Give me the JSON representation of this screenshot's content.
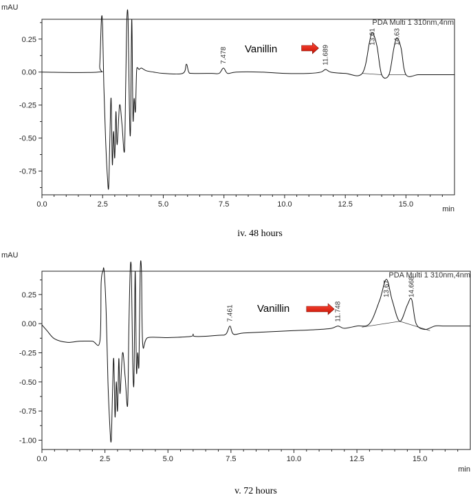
{
  "chart_data": [
    {
      "type": "line",
      "caption": "iv. 48 hours",
      "ylabel": "mAU",
      "xlabel": "min",
      "detector_label": "PDA Multi 1 310nm,4nm",
      "annotation": "Vanillin",
      "xlim": [
        0,
        17
      ],
      "ylim": [
        -0.93,
        0.4
      ],
      "xticks": [
        "0.0",
        "2.5",
        "5.0",
        "7.5",
        "10.0",
        "12.5",
        "15.0"
      ],
      "xtick_values": [
        0,
        2.5,
        5,
        7.5,
        10,
        12.5,
        15
      ],
      "yticks": [
        "0.25",
        "0.00",
        "-0.25",
        "-0.50",
        "-0.75"
      ],
      "ytick_values": [
        0.25,
        0,
        -0.25,
        -0.5,
        -0.75
      ],
      "peak_labels": [
        "7.478",
        "11.689",
        "13.61",
        "14.63"
      ],
      "peak_label_x": [
        7.478,
        11.689,
        13.61,
        14.63
      ],
      "arrow_x": [
        10.7,
        11.4
      ],
      "series": [
        {
          "x": [
            0,
            2.3,
            2.38,
            2.45,
            2.5,
            2.55,
            2.62,
            2.7,
            2.75,
            2.8,
            2.85,
            2.9,
            2.95,
            3.0,
            3.05,
            3.1,
            3.2,
            3.3,
            3.4,
            3.45,
            3.5,
            3.55,
            3.6,
            3.65,
            3.7,
            3.75,
            3.8,
            3.85,
            3.9,
            3.95,
            4.0,
            4.1,
            4.3,
            4.6,
            5.0,
            5.8,
            5.95,
            6.05,
            6.2,
            7.0,
            7.3,
            7.48,
            7.65,
            8.0,
            9.0,
            10.0,
            11.0,
            11.5,
            11.69,
            11.9,
            12.5,
            13.2,
            13.5,
            13.61,
            13.8,
            14.0,
            14.3,
            14.5,
            14.63,
            14.8,
            15.0,
            15.5,
            16.0,
            17.0
          ],
          "y": [
            0.0,
            0.0,
            0.05,
            0.55,
            0.35,
            -0.1,
            -0.5,
            -0.8,
            -0.87,
            -0.5,
            -0.2,
            -0.7,
            -0.45,
            -0.65,
            -0.3,
            -0.55,
            -0.25,
            -0.4,
            -0.6,
            -0.1,
            0.55,
            0.55,
            -0.25,
            -0.45,
            0.55,
            -0.35,
            -0.2,
            -0.3,
            0.0,
            0.03,
            0.02,
            0.03,
            0.01,
            0.0,
            -0.01,
            -0.01,
            0.06,
            0.0,
            -0.01,
            -0.01,
            -0.01,
            0.03,
            -0.01,
            0.0,
            0.0,
            -0.01,
            -0.01,
            0.0,
            0.02,
            0.0,
            -0.01,
            -0.01,
            0.23,
            0.3,
            0.2,
            -0.02,
            -0.02,
            0.18,
            0.26,
            0.18,
            -0.02,
            -0.02,
            -0.02,
            -0.02
          ]
        }
      ]
    },
    {
      "type": "line",
      "caption": "v. 72 hours",
      "ylabel": "mAU",
      "xlabel": "min",
      "detector_label": "PDA Multi 1 310nm,4nm",
      "annotation": "Vanillin",
      "xlim": [
        0,
        17
      ],
      "ylim": [
        -1.08,
        0.45
      ],
      "xticks": [
        "0.0",
        "2.5",
        "5.0",
        "7.5",
        "10.0",
        "12.5",
        "15.0"
      ],
      "xtick_values": [
        0,
        2.5,
        5,
        7.5,
        10,
        12.5,
        15
      ],
      "yticks": [
        "0.25",
        "0.00",
        "-0.25",
        "-0.50",
        "-0.75",
        "-1.00"
      ],
      "ytick_values": [
        0.25,
        0,
        -0.25,
        -0.5,
        -0.75,
        -1.0
      ],
      "peak_labels": [
        "7.461",
        "11.748",
        "13.67",
        "14.668"
      ],
      "peak_label_x": [
        7.461,
        11.748,
        13.67,
        14.668
      ],
      "arrow_x": [
        10.5,
        11.6
      ],
      "series": [
        {
          "x": [
            0,
            0.2,
            0.5,
            1.0,
            1.5,
            2.0,
            2.3,
            2.35,
            2.42,
            2.47,
            2.55,
            2.62,
            2.7,
            2.75,
            2.8,
            2.85,
            2.9,
            2.95,
            3.0,
            3.05,
            3.1,
            3.2,
            3.3,
            3.4,
            3.45,
            3.5,
            3.55,
            3.6,
            3.65,
            3.7,
            3.75,
            3.8,
            3.85,
            3.9,
            3.95,
            4.0,
            4.2,
            5.0,
            5.9,
            6.0,
            6.1,
            7.0,
            7.3,
            7.46,
            7.6,
            8.0,
            9.0,
            10.0,
            11.0,
            11.5,
            11.75,
            12.0,
            12.5,
            13.0,
            13.4,
            13.67,
            13.9,
            14.2,
            14.5,
            14.67,
            14.85,
            15.2,
            15.6,
            16.0,
            17.0
          ],
          "y": [
            -0.01,
            -0.06,
            -0.13,
            -0.16,
            -0.15,
            -0.15,
            -0.15,
            0.35,
            0.55,
            0.55,
            0.1,
            -0.5,
            -0.9,
            -1.0,
            -0.6,
            -0.3,
            -0.8,
            -0.5,
            -0.75,
            -0.3,
            -0.6,
            -0.25,
            -0.45,
            -0.7,
            -0.05,
            0.55,
            0.55,
            -0.3,
            -0.5,
            0.55,
            -0.4,
            -0.25,
            -0.35,
            0.55,
            0.55,
            -0.18,
            -0.12,
            -0.12,
            -0.11,
            -0.09,
            -0.11,
            -0.1,
            -0.09,
            -0.02,
            -0.09,
            -0.08,
            -0.07,
            -0.06,
            -0.05,
            -0.04,
            -0.02,
            -0.04,
            -0.02,
            0.0,
            0.2,
            0.38,
            0.2,
            0.02,
            0.16,
            0.21,
            0.0,
            -0.05,
            -0.02,
            -0.02,
            -0.02
          ]
        }
      ]
    }
  ]
}
